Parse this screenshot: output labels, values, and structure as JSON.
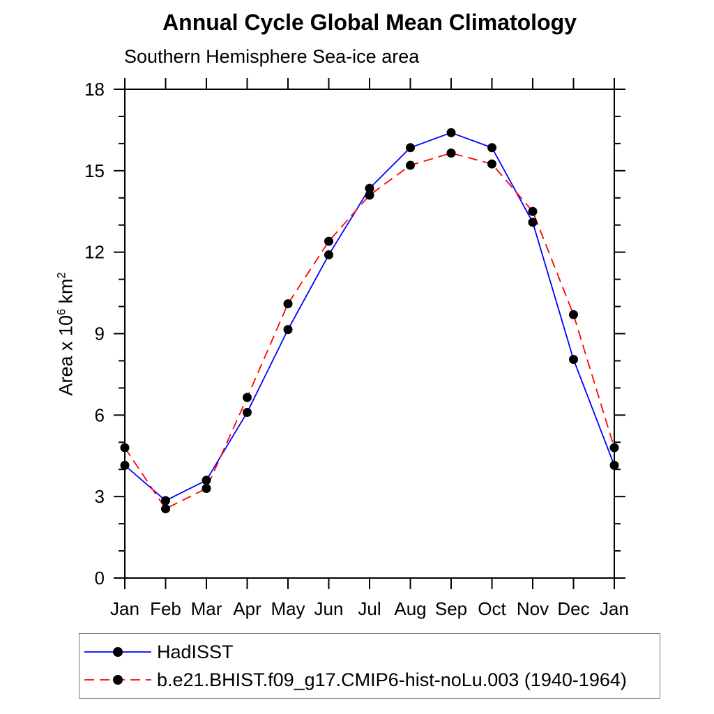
{
  "title": "Annual Cycle Global Mean Climatology",
  "subtitle": "Southern Hemisphere Sea-ice area",
  "y_axis_label": {
    "prefix": "Area x 10",
    "sup1": "6",
    "mid": " km",
    "sup2": "2"
  },
  "legend": {
    "entries": [
      {
        "label": "HadISST",
        "color": "#0000ff",
        "style": "solid",
        "marker_color": "#000000"
      },
      {
        "label": "b.e21.BHIST.f09_g17.CMIP6-hist-noLu.003 (1940-1964)",
        "color": "#ff0000",
        "style": "dashed",
        "marker_color": "#000000"
      }
    ]
  },
  "chart_data": {
    "type": "line",
    "title": "Annual Cycle Global Mean Climatology",
    "subtitle": "Southern Hemisphere Sea-ice area",
    "xlabel": "",
    "ylabel": "Area x 10^6 km^2",
    "x_tick_labels": [
      "Jan",
      "Feb",
      "Mar",
      "Apr",
      "May",
      "Jun",
      "Jul",
      "Aug",
      "Sep",
      "Oct",
      "Nov",
      "Dec",
      "Jan"
    ],
    "y_major_ticks": [
      0,
      3,
      6,
      9,
      12,
      15,
      18
    ],
    "y_minor_step": 1,
    "ylim": [
      0,
      18
    ],
    "grid": false,
    "legend_position": "bottom",
    "marker": "filled-circle",
    "marker_color": "#000000",
    "axis_color": "#000000",
    "series": [
      {
        "name": "HadISST",
        "color": "#0000ff",
        "style": "solid",
        "values": [
          4.15,
          2.85,
          3.6,
          6.1,
          9.15,
          11.9,
          14.35,
          15.85,
          16.4,
          15.85,
          13.1,
          8.05,
          4.15
        ]
      },
      {
        "name": "b.e21.BHIST.f09_g17.CMIP6-hist-noLu.003 (1940-1964)",
        "color": "#ff0000",
        "style": "dashed",
        "values": [
          4.8,
          2.55,
          3.3,
          6.65,
          10.1,
          12.4,
          14.1,
          15.2,
          15.65,
          15.25,
          13.5,
          9.7,
          4.8
        ]
      }
    ]
  }
}
